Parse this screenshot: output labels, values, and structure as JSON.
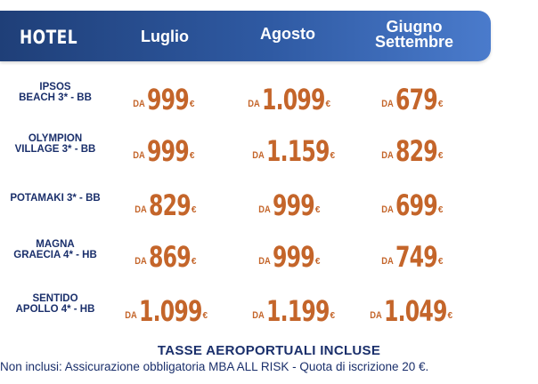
{
  "header": {
    "hotel": "HOTEL",
    "columns": [
      "Luglio",
      "Agosto",
      "Giugno\nSettembre"
    ]
  },
  "rows": [
    {
      "hotel": "IPSOS\nBEACH 3* - BB",
      "prices": [
        "999",
        "1.099",
        "679"
      ]
    },
    {
      "hotel": "OLYMPION\nVILLAGE 3* - BB",
      "prices": [
        "999",
        "1.159",
        "829"
      ]
    },
    {
      "hotel": "POTAMAKI 3* - BB",
      "prices": [
        "829",
        "999",
        "699"
      ]
    },
    {
      "hotel": "MAGNA\nGRAECIA 4* - HB",
      "prices": [
        "869",
        "999",
        "749"
      ]
    },
    {
      "hotel": "SENTIDO\nAPOLLO 4* - HB",
      "prices": [
        "1.099",
        "1.199",
        "1.049"
      ]
    }
  ],
  "price_prefix": "DA",
  "currency": "€",
  "footer": {
    "title": "TASSE AEROPORTUALI INCLUSE",
    "note": "Non inclusi: Assicurazione obbligatoria MBA ALL RISK  - Quota di iscrizione 20 €."
  },
  "colors": {
    "header_bg": "#2f5aa3",
    "hotel_text": "#1a2f6b",
    "price_text": "#c4652a"
  }
}
